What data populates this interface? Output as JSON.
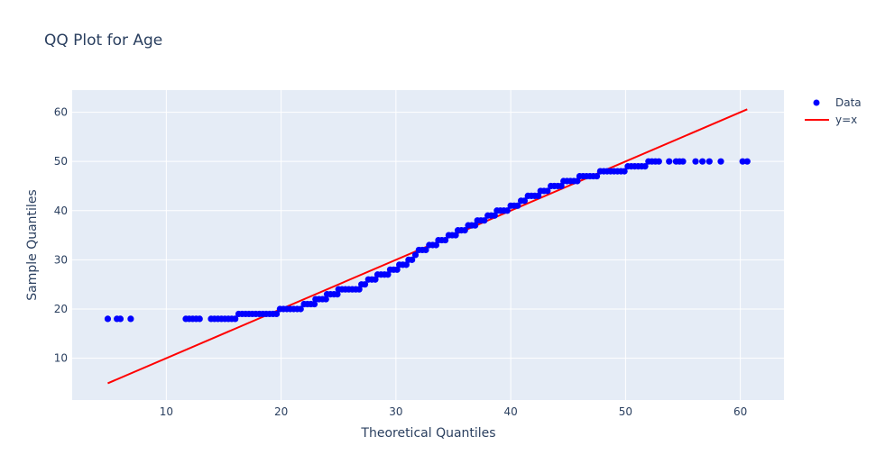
{
  "chart_data": {
    "type": "scatter",
    "title": "QQ Plot for Age",
    "xlabel": "Theoretical Quantiles",
    "ylabel": "Sample Quantiles",
    "xlim": [
      1.8,
      63.8
    ],
    "ylim": [
      1.5,
      64.5
    ],
    "x_ticks": [
      10,
      20,
      30,
      40,
      50,
      60
    ],
    "y_ticks": [
      10,
      20,
      30,
      40,
      50,
      60
    ],
    "grid": true,
    "legend_position": "top-right",
    "colors": {
      "plot_bg": "#e5ecf6",
      "data": "#0000ff",
      "line": "#ff0000",
      "grid": "#ffffff",
      "text": "#2a3f5f"
    },
    "series": [
      {
        "name": "Data",
        "mode": "markers",
        "steps": [
          {
            "y": 18,
            "x": [
              4.9,
              5.7,
              6.0,
              6.9,
              11.7,
              12.0,
              12.3,
              12.6,
              12.9,
              13.9,
              14.2,
              14.5,
              14.8,
              15.1,
              15.4,
              15.7,
              16.0
            ]
          },
          {
            "y": 19,
            "x": [
              16.3,
              16.6,
              16.9,
              17.2,
              17.5,
              17.8,
              18.1,
              18.4,
              18.7,
              19.0,
              19.3,
              19.6
            ]
          },
          {
            "y": 20,
            "x": [
              19.9,
              20.2,
              20.5,
              20.8,
              21.1,
              21.4,
              21.7
            ]
          },
          {
            "y": 21,
            "x": [
              22.0,
              22.3,
              22.6,
              22.9
            ]
          },
          {
            "y": 22,
            "x": [
              23.0,
              23.3,
              23.6,
              23.9
            ]
          },
          {
            "y": 23,
            "x": [
              24.0,
              24.3,
              24.6,
              24.9
            ]
          },
          {
            "y": 24,
            "x": [
              25.0,
              25.3,
              25.6,
              25.9,
              26.2,
              26.5,
              26.8
            ]
          },
          {
            "y": 25,
            "x": [
              27.0,
              27.3
            ]
          },
          {
            "y": 26,
            "x": [
              27.6,
              27.9,
              28.2
            ]
          },
          {
            "y": 27,
            "x": [
              28.4,
              28.7,
              29.0,
              29.3
            ]
          },
          {
            "y": 28,
            "x": [
              29.5,
              29.8,
              30.1
            ]
          },
          {
            "y": 29,
            "x": [
              30.3,
              30.6,
              30.9
            ]
          },
          {
            "y": 30,
            "x": [
              31.1,
              31.4
            ]
          },
          {
            "y": 31,
            "x": [
              31.7
            ]
          },
          {
            "y": 32,
            "x": [
              32.0,
              32.3,
              32.6
            ]
          },
          {
            "y": 33,
            "x": [
              32.9,
              33.2,
              33.5
            ]
          },
          {
            "y": 34,
            "x": [
              33.7,
              34.0,
              34.3
            ]
          },
          {
            "y": 35,
            "x": [
              34.6,
              34.9,
              35.2
            ]
          },
          {
            "y": 36,
            "x": [
              35.4,
              35.7,
              36.0
            ]
          },
          {
            "y": 37,
            "x": [
              36.3,
              36.6,
              36.9
            ]
          },
          {
            "y": 38,
            "x": [
              37.1,
              37.4,
              37.7
            ]
          },
          {
            "y": 39,
            "x": [
              38.0,
              38.3,
              38.6
            ]
          },
          {
            "y": 40,
            "x": [
              38.8,
              39.1,
              39.4,
              39.7
            ]
          },
          {
            "y": 41,
            "x": [
              40.0,
              40.3,
              40.6
            ]
          },
          {
            "y": 42,
            "x": [
              40.9,
              41.2
            ]
          },
          {
            "y": 43,
            "x": [
              41.5,
              41.8,
              42.1,
              42.4
            ]
          },
          {
            "y": 44,
            "x": [
              42.6,
              42.9,
              43.2
            ]
          },
          {
            "y": 45,
            "x": [
              43.5,
              43.8,
              44.1,
              44.4
            ]
          },
          {
            "y": 46,
            "x": [
              44.6,
              44.9,
              45.2,
              45.5,
              45.8
            ]
          },
          {
            "y": 47,
            "x": [
              46.0,
              46.3,
              46.6,
              46.9,
              47.2,
              47.5
            ]
          },
          {
            "y": 48,
            "x": [
              47.8,
              48.1,
              48.4,
              48.7,
              49.0,
              49.3,
              49.6,
              49.9
            ]
          },
          {
            "y": 49,
            "x": [
              50.2,
              50.5,
              50.8,
              51.1,
              51.4,
              51.7
            ]
          },
          {
            "y": 50,
            "x": [
              52.0,
              52.3,
              52.6,
              52.9,
              53.8,
              54.4,
              54.7,
              55.0,
              56.1,
              56.7,
              57.3,
              58.3,
              60.2,
              60.6
            ]
          }
        ]
      },
      {
        "name": "y=x",
        "mode": "lines",
        "x": [
          4.9,
          60.6
        ],
        "y": [
          4.9,
          60.6
        ]
      }
    ]
  }
}
